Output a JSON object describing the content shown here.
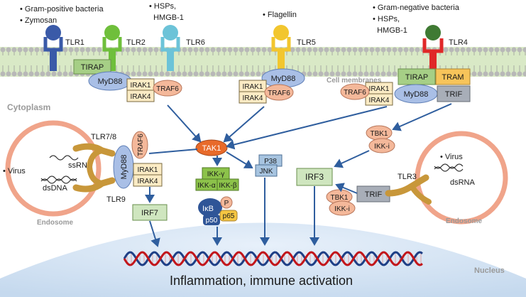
{
  "regions": {
    "cytoplasm": "Cytoplasm",
    "nucleus": "Nucleus",
    "cell_membranes": "Cell membranes",
    "endosome_left": "Endosome",
    "endosome_right": "Endosome"
  },
  "ligands": {
    "tlr1_2": [
      "• Gram-positive bacteria",
      "• Zymosan"
    ],
    "tlr6": [
      "• HSPs,",
      "  HMGB-1"
    ],
    "tlr5": [
      "• Flagellin"
    ],
    "tlr4": [
      "• Gram-negative bacteria",
      "• HSPs,",
      "  HMGB-1"
    ]
  },
  "receptors": {
    "tlr1": "TLR1",
    "tlr2": "TLR2",
    "tlr6": "TLR6",
    "tlr5": "TLR5",
    "tlr4": "TLR4",
    "tlr78": "TLR7/8",
    "tlr9": "TLR9",
    "tlr3": "TLR3"
  },
  "adaptors": {
    "tirap": "TIRAP",
    "myd88": "MyD88",
    "irak1": "IRAK1",
    "irak4": "IRAK4",
    "traf6": "TRAF6",
    "tram": "TRAM",
    "trif": "TRIF",
    "tbk1": "TBK1",
    "ikki": "IKK-i"
  },
  "kinases": {
    "tak1": "TAK1",
    "ikk_gamma": "IKK-γ",
    "ikk_alpha": "IKK-α",
    "ikk_beta": "IKK-β",
    "ikb": "IκB",
    "p": "P",
    "p50": "p50",
    "p65": "p65",
    "p38": "P38",
    "jnk": "JNK"
  },
  "transcription": {
    "irf7": "IRF7",
    "irf3": "IRF3"
  },
  "endosome_left": {
    "virus": "• Virus",
    "ssrna": "ssRNA",
    "dsdna": "dsDNA"
  },
  "endosome_right": {
    "virus": "• Virus",
    "dsrna": "dsRNA"
  },
  "outcome": "Inflammation, immune activation",
  "colors": {
    "membrane_band": "#d9e9c6",
    "lipid_head": "#b8b8b8",
    "tlr1": "#3a5aa8",
    "tlr2": "#6fbf3b",
    "tlr6": "#6cc3d8",
    "tlr5": "#f2c62e",
    "tlr4": "#e02828",
    "myd88": "#a9bfe6",
    "irak": "#fbebc4",
    "traf6": "#f4b89a",
    "tirap": "#a6cf86",
    "tram": "#f7c45a",
    "trif": "#a8aeb8",
    "tak1": "#e86a2a",
    "ikk": "#8cc24a",
    "ikb": "#2f5597",
    "p65": "#f5c642",
    "jnk": "#a7c4e0",
    "irf": "#cfe6bf",
    "endosome": "#f0a48a",
    "nucleus": "#d7e7f5",
    "arrow": "#2f5e9e",
    "dna_red": "#c2161b",
    "dna_blue": "#1e3f86"
  }
}
